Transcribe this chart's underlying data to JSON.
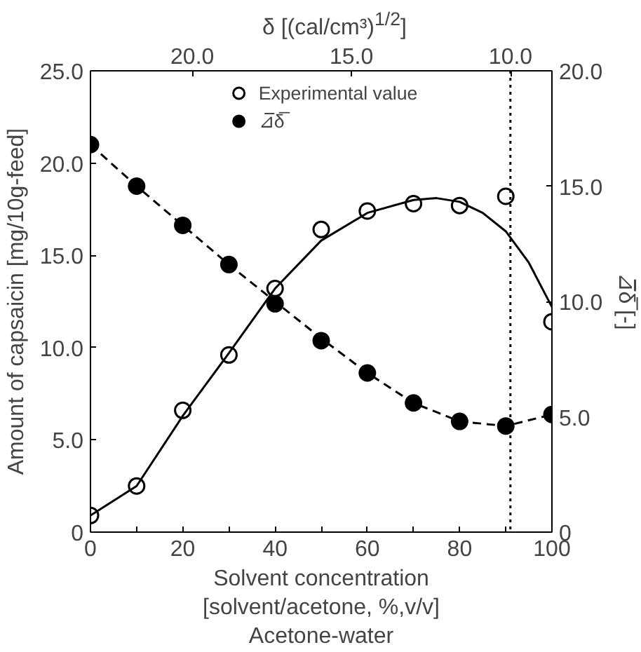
{
  "chart_data": {
    "type": "scatter",
    "xlabel": "Solvent concentration\n[solvent/acetone, %,v/v]\nAcetone-water",
    "ylabel": "Amount of capsaicin [mg/10g-feed]",
    "y2label": "⊿̅δ̅ [-]",
    "x2label": "δ  [(cal/cm³)$^{1/2}$]",
    "x": [
      0,
      10,
      20,
      30,
      40,
      50,
      60,
      70,
      80,
      90,
      100
    ],
    "series": [
      {
        "name": "Experimental value",
        "color": "#000000",
        "marker": "circle",
        "values": [
          0.9,
          2.5,
          6.6,
          9.6,
          13.2,
          16.4,
          17.4,
          17.8,
          17.7,
          18.2,
          11.4
        ]
      },
      {
        "name": "⊿̅δ̅",
        "color": "#000000",
        "marker": "circle",
        "axis": "y2",
        "values": [
          16.8,
          15.0,
          13.3,
          11.6,
          9.9,
          8.3,
          6.9,
          5.6,
          4.8,
          4.6,
          5.1
        ]
      },
      {
        "type": "line",
        "color": "#000000",
        "line_style": "solid",
        "x": [
          0,
          10,
          20,
          30,
          40,
          50,
          60,
          70,
          75,
          80,
          85,
          90,
          95,
          100
        ],
        "values": [
          0.9,
          2.5,
          6.3,
          9.7,
          13.2,
          15.8,
          17.3,
          18.0,
          18.1,
          17.9,
          17.3,
          16.3,
          14.6,
          12.2
        ]
      },
      {
        "type": "line",
        "color": "#000000",
        "line_style": "dashed",
        "axis": "y2",
        "x": [
          0,
          10,
          20,
          30,
          40,
          50,
          60,
          70,
          80,
          90,
          100
        ],
        "values": [
          16.8,
          15.0,
          13.3,
          11.6,
          10.0,
          8.4,
          6.9,
          5.6,
          4.8,
          4.6,
          5.1
        ]
      }
    ],
    "xlim": [
      0,
      100
    ],
    "xticks": [
      0,
      {
        "value": 10,
        "label": null
      },
      20,
      {
        "value": 30,
        "label": null
      },
      40,
      {
        "value": 50,
        "label": null
      },
      60,
      {
        "value": 70,
        "label": null
      },
      80,
      {
        "value": 90,
        "label": null
      },
      100
    ],
    "ylim": [
      0,
      25
    ],
    "yticks": [
      0,
      {
        "value": 5,
        "label": "5.0"
      },
      {
        "value": 10,
        "label": "10.0"
      },
      {
        "value": 15,
        "label": "15.0"
      },
      {
        "value": 20,
        "label": "20.0"
      },
      {
        "value": 25,
        "label": "25.0"
      }
    ],
    "y2lim": [
      0,
      20
    ],
    "y2ticks": [
      0,
      {
        "value": 5,
        "label": "5.0"
      },
      {
        "value": 10,
        "label": "10.0"
      },
      {
        "value": 15,
        "label": "15.0"
      },
      {
        "value": 20,
        "label": "20.0"
      }
    ],
    "x2lim": [
      23.2,
      8.7
    ],
    "x2ticks": [
      {
        "value": 20,
        "label": "20.0"
      },
      {
        "value": 15,
        "label": "15.0"
      },
      {
        "value": 10,
        "label": "10.0"
      }
    ],
    "ref_lines": [
      {
        "axis": "x",
        "value": 91,
        "line_style": "dotted",
        "color": "#000000"
      }
    ],
    "grid": false,
    "legend": "top"
  }
}
